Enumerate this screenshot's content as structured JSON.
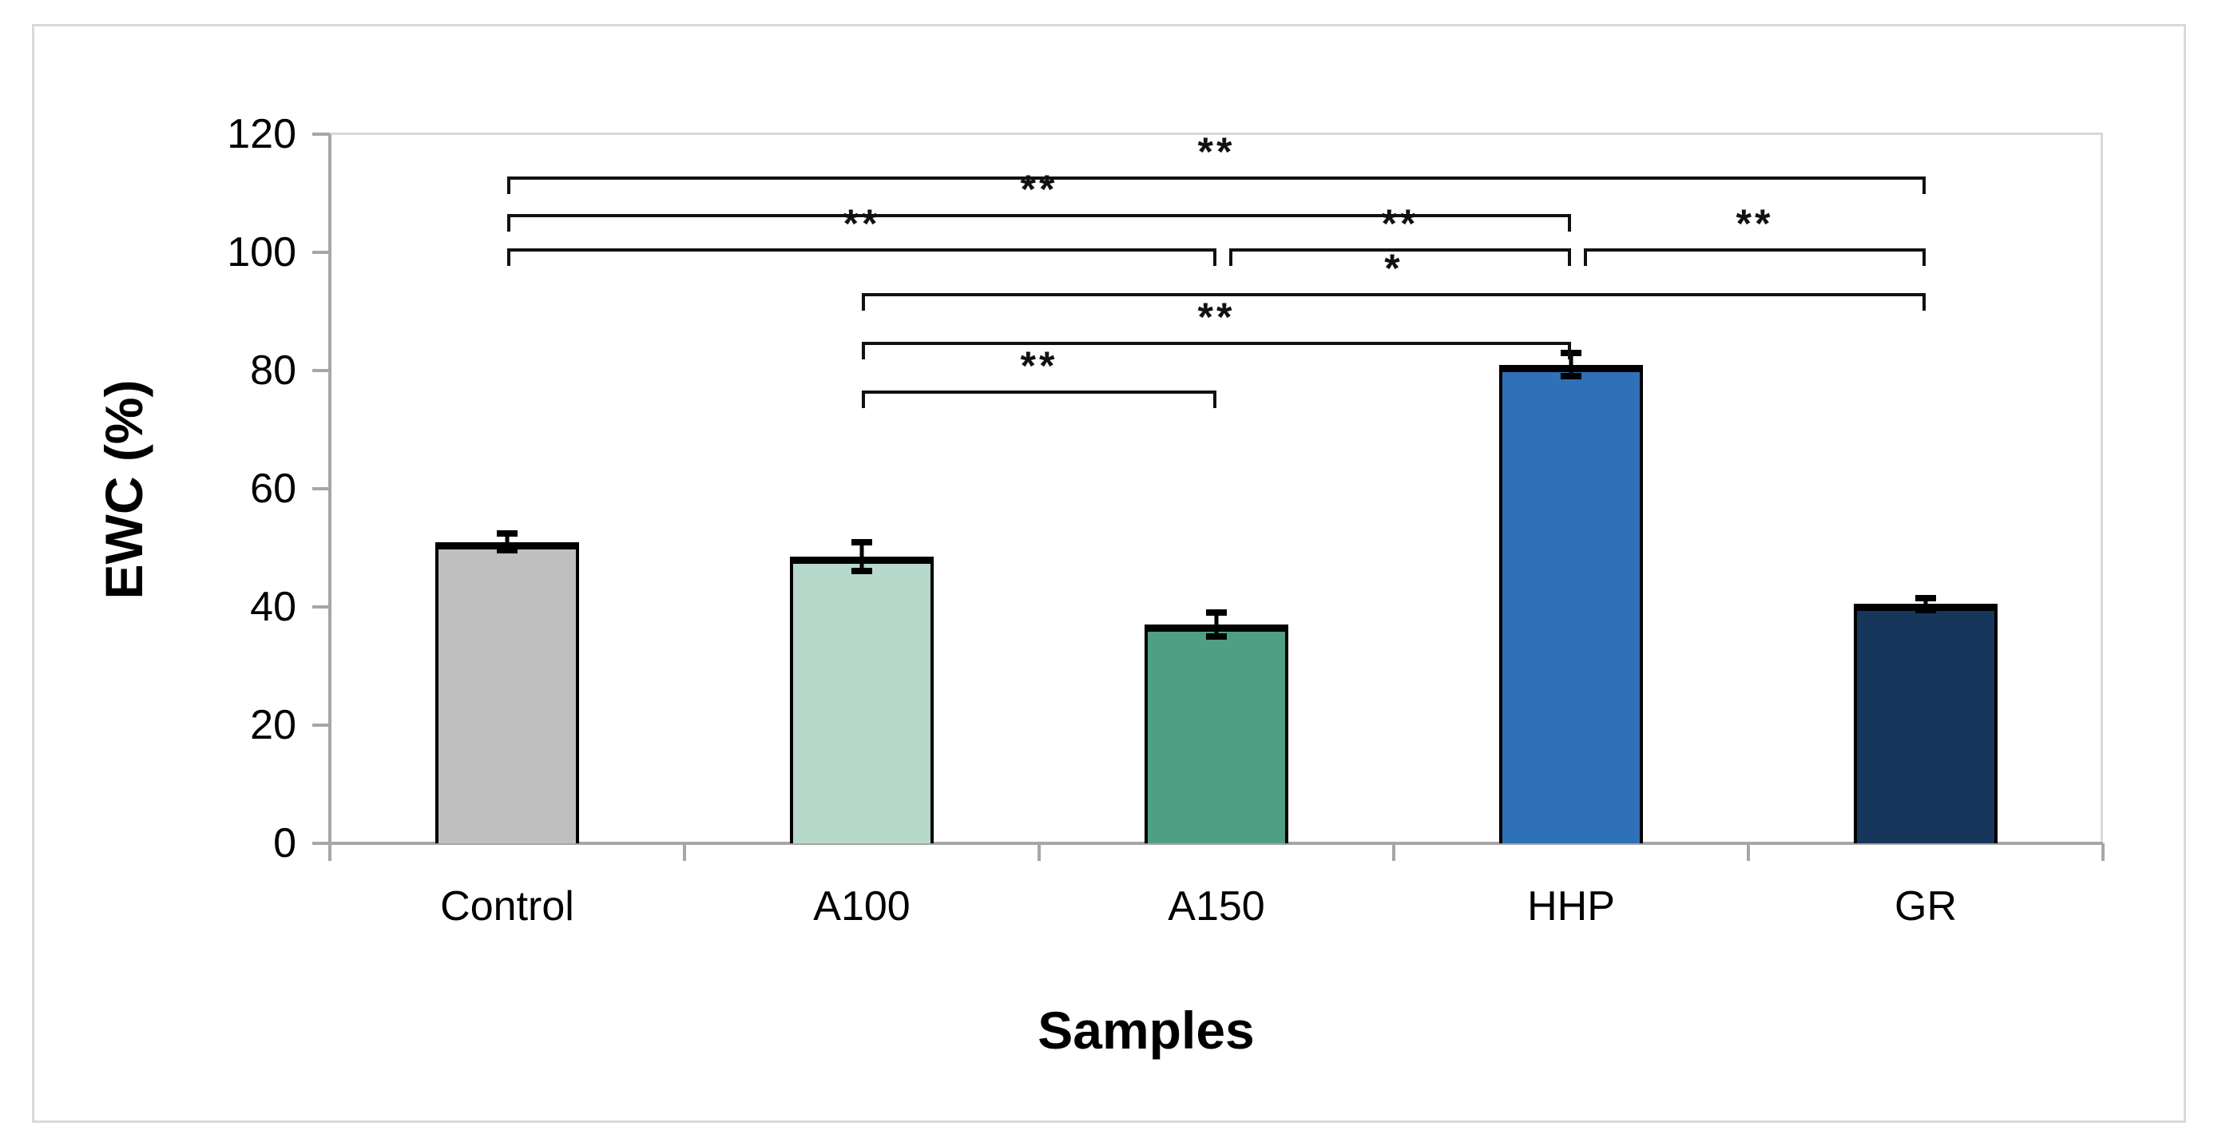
{
  "figure": {
    "background": "#ffffff",
    "border_color": "#d9d9d9"
  },
  "chart_data": {
    "type": "bar",
    "title": "",
    "xlabel": "Samples",
    "ylabel": "EWC (%)",
    "categories": [
      "Control",
      "A100",
      "A150",
      "HHP",
      "GR"
    ],
    "values": [
      51,
      48.5,
      37,
      81,
      40.5
    ],
    "errors": [
      1.4,
      2.4,
      2,
      2,
      1
    ],
    "bar_colors": [
      "#bfbfbf",
      "#b7d8ca",
      "#4f9f85",
      "#2f71b8",
      "#17365c"
    ],
    "bar_outline": "#000000",
    "ylim": [
      0,
      120
    ],
    "yticks": [
      0,
      20,
      40,
      60,
      80,
      100,
      120
    ],
    "grid": false,
    "legend": "none",
    "axis_color": "#a6a6a6",
    "plot_border_color": "#d9d9d9",
    "significance": [
      {
        "from": "Control",
        "to": "GR",
        "label": "**",
        "row": 0
      },
      {
        "from": "Control",
        "to": "HHP",
        "label": "**",
        "row": 1
      },
      {
        "from": "Control",
        "to": "A150",
        "label": "**",
        "row": 2
      },
      {
        "from": "A150",
        "to": "HHP",
        "label": "**",
        "row": 2
      },
      {
        "from": "HHP",
        "to": "GR",
        "label": "**",
        "row": 2
      },
      {
        "from": "A100",
        "to": "GR",
        "label": "*",
        "row": 3
      },
      {
        "from": "A100",
        "to": "HHP",
        "label": "**",
        "row": 4
      },
      {
        "from": "A100",
        "to": "A150",
        "label": "**",
        "row": 5
      }
    ]
  }
}
